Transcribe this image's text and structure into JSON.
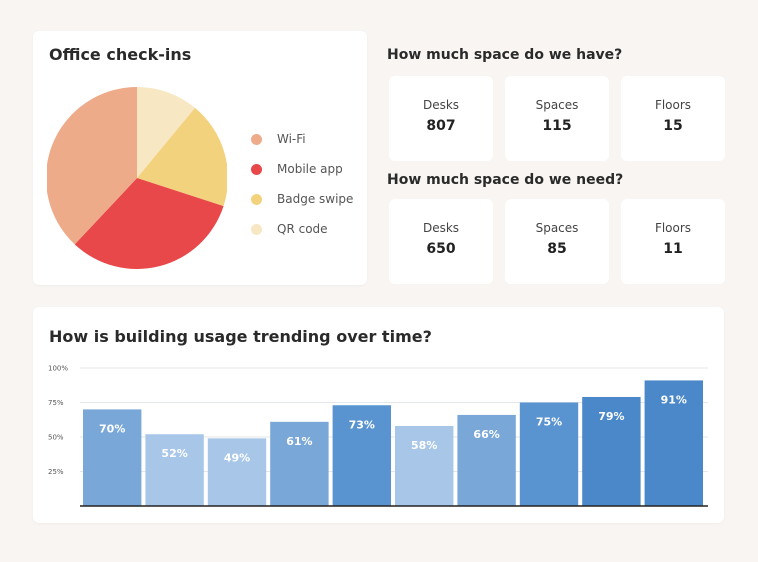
{
  "checkins": {
    "title": "Office check-ins",
    "legend": [
      {
        "label": "Wi-Fi",
        "color": "#eeab8a"
      },
      {
        "label": "Mobile app",
        "color": "#e8484a"
      },
      {
        "label": "Badge swipe",
        "color": "#f3d27e"
      },
      {
        "label": "QR code",
        "color": "#f7e7c3"
      }
    ]
  },
  "space_have": {
    "heading": "How much space do we have?",
    "stats": [
      {
        "label": "Desks",
        "value": "807"
      },
      {
        "label": "Spaces",
        "value": "115"
      },
      {
        "label": "Floors",
        "value": "15"
      }
    ]
  },
  "space_need": {
    "heading": "How much space do we need?",
    "stats": [
      {
        "label": "Desks",
        "value": "650"
      },
      {
        "label": "Spaces",
        "value": "85"
      },
      {
        "label": "Floors",
        "value": "11"
      }
    ]
  },
  "trend": {
    "title": "How is building usage trending over time?"
  },
  "chart_data": [
    {
      "type": "pie",
      "categories": [
        "Wi-Fi",
        "Mobile app",
        "Badge swipe",
        "QR code"
      ],
      "values": [
        38,
        32,
        19,
        11
      ],
      "colors": [
        "#eeab8a",
        "#e8484a",
        "#f3d27e",
        "#f7e7c3"
      ],
      "legend_position": "right"
    },
    {
      "type": "bar",
      "title": "How is building usage trending over time?",
      "values": [
        70,
        52,
        49,
        61,
        73,
        58,
        66,
        75,
        79,
        91
      ],
      "data_labels": [
        "70%",
        "52%",
        "49%",
        "61%",
        "73%",
        "58%",
        "66%",
        "75%",
        "79%",
        "91%"
      ],
      "ylim": [
        0,
        100
      ],
      "yticks": [
        "25%",
        "50%",
        "75%",
        "100%"
      ],
      "bar_colors": [
        "#79a7d8",
        "#a7c6e8",
        "#a7c6e8",
        "#79a7d8",
        "#5a94d0",
        "#a7c6e8",
        "#79a7d8",
        "#5a94d0",
        "#4a88c9",
        "#4a88c9"
      ],
      "grid": true
    }
  ]
}
